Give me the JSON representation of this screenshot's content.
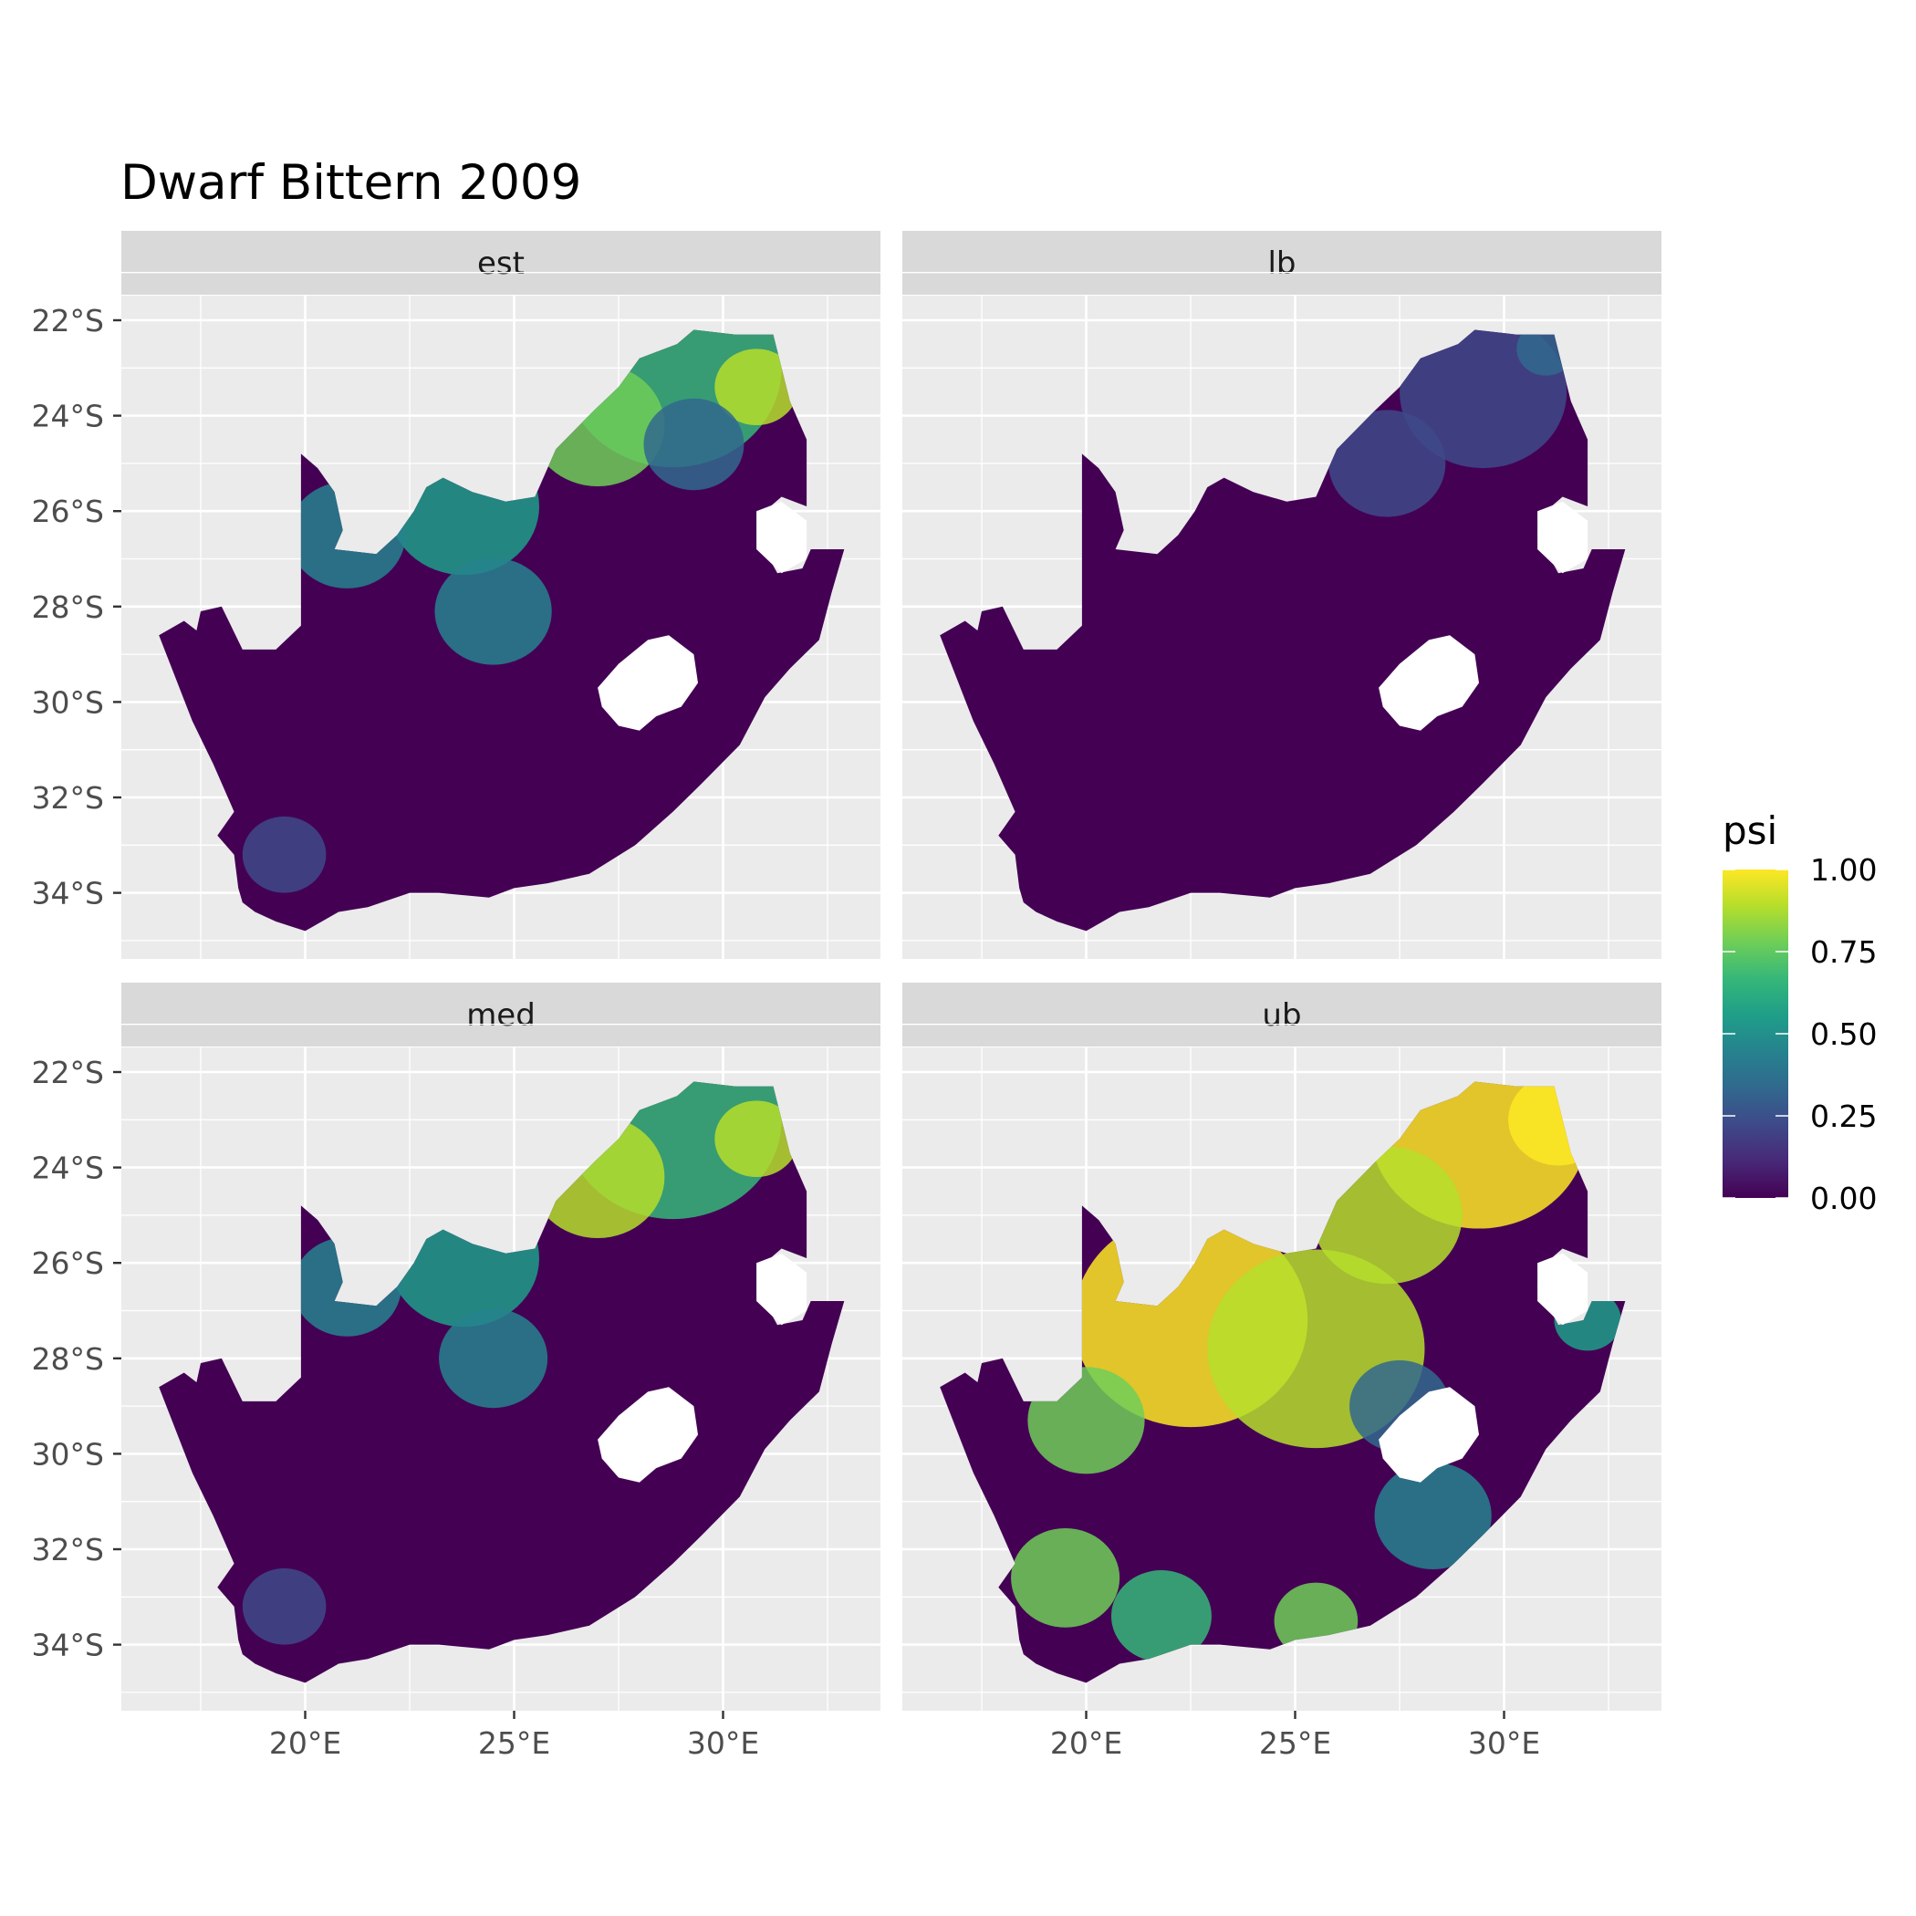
{
  "title": "Dwarf Bittern 2009",
  "colors": {
    "panel_bg": "#ebebeb",
    "strip_bg": "#d9d9d9",
    "grid": "#ffffff",
    "viridis": [
      "#440154",
      "#482878",
      "#3e4989",
      "#31688e",
      "#26828e",
      "#1f9e89",
      "#35b779",
      "#6ece58",
      "#b5de2b",
      "#fde725"
    ]
  },
  "chart_data": {
    "type": "heatmap",
    "subtype": "faceted raster map (South Africa occupancy)",
    "x_axis": {
      "unit": "degrees longitude E",
      "ticks": [
        20,
        25,
        30
      ],
      "tick_labels": [
        "20°E",
        "25°E",
        "30°E"
      ],
      "range": [
        15.6,
        33.8
      ]
    },
    "y_axis": {
      "unit": "degrees latitude S",
      "ticks": [
        -22,
        -24,
        -26,
        -28,
        -30,
        -32,
        -34
      ],
      "tick_labels": [
        "22°S",
        "24°S",
        "26°S",
        "28°S",
        "30°S",
        "32°S",
        "34°S"
      ],
      "range": [
        -35.4,
        -21.5
      ]
    },
    "grid": true,
    "facets": [
      {
        "name": "est",
        "label": "est"
      },
      {
        "name": "lb",
        "label": "lb"
      },
      {
        "name": "med",
        "label": "med"
      },
      {
        "name": "ub",
        "label": "ub"
      }
    ],
    "legend": {
      "title": "psi",
      "position": "right",
      "breaks": [
        1.0,
        0.75,
        0.5,
        0.25,
        0.0
      ],
      "labels": [
        "1.00",
        "0.75",
        "0.50",
        "0.25",
        "0.00"
      ],
      "colormap": "viridis",
      "range": [
        0,
        1
      ]
    }
  }
}
